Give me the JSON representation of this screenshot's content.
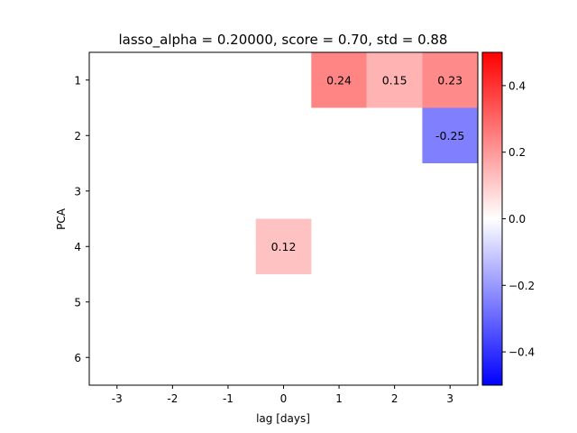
{
  "chart_data": {
    "type": "heatmap",
    "title": "lasso_alpha = 0.20000, score = 0.70, std = 0.88",
    "xlabel": "lag [days]",
    "ylabel": "PCA",
    "x_categories": [
      "-3",
      "-2",
      "-1",
      "0",
      "1",
      "2",
      "3"
    ],
    "y_categories": [
      "1",
      "2",
      "3",
      "4",
      "5",
      "6"
    ],
    "cells": [
      {
        "x": "1",
        "y": "1",
        "value": 0.24,
        "label": "0.24"
      },
      {
        "x": "2",
        "y": "1",
        "value": 0.15,
        "label": "0.15"
      },
      {
        "x": "3",
        "y": "1",
        "value": 0.23,
        "label": "0.23"
      },
      {
        "x": "3",
        "y": "2",
        "value": -0.25,
        "label": "-0.25"
      },
      {
        "x": "0",
        "y": "4",
        "value": 0.12,
        "label": "0.12"
      }
    ],
    "colorbar": {
      "colormap": "bwr",
      "vmin": -0.5,
      "vmax": 0.5,
      "ticks": [
        -0.4,
        -0.2,
        0.0,
        0.2,
        0.4
      ],
      "tick_labels": [
        "−0.4",
        "−0.2",
        "0.0",
        "0.2",
        "0.4"
      ]
    },
    "grid": false
  }
}
